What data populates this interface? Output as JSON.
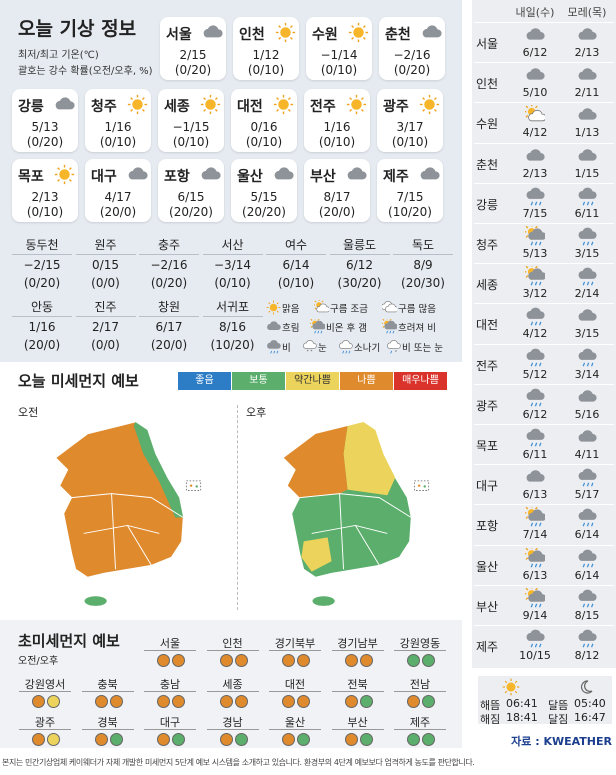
{
  "header": {
    "title": "오늘 기상 정보",
    "note1": "최저/최고 기온(℃)",
    "note2": "괄호는 강수 확률(오전/오후, %)"
  },
  "cities": [
    {
      "name": "서울",
      "temp": "2/15",
      "rain": "(0/20)",
      "icon": "cloud"
    },
    {
      "name": "인천",
      "temp": "1/12",
      "rain": "(0/10)",
      "icon": "sun"
    },
    {
      "name": "수원",
      "temp": "−1/14",
      "rain": "(0/10)",
      "icon": "sun"
    },
    {
      "name": "춘천",
      "temp": "−2/16",
      "rain": "(0/20)",
      "icon": "cloud"
    },
    {
      "name": "강릉",
      "temp": "5/13",
      "rain": "(0/20)",
      "icon": "cloud"
    },
    {
      "name": "청주",
      "temp": "1/16",
      "rain": "(0/10)",
      "icon": "sun"
    },
    {
      "name": "세종",
      "temp": "−1/15",
      "rain": "(0/10)",
      "icon": "sun"
    },
    {
      "name": "대전",
      "temp": "0/16",
      "rain": "(0/10)",
      "icon": "sun"
    },
    {
      "name": "전주",
      "temp": "1/16",
      "rain": "(0/10)",
      "icon": "sun"
    },
    {
      "name": "광주",
      "temp": "3/17",
      "rain": "(0/10)",
      "icon": "sun"
    },
    {
      "name": "목포",
      "temp": "2/13",
      "rain": "(0/10)",
      "icon": "sun"
    },
    {
      "name": "대구",
      "temp": "4/17",
      "rain": "(20/0)",
      "icon": "cloud"
    },
    {
      "name": "포항",
      "temp": "6/15",
      "rain": "(20/20)",
      "icon": "cloud"
    },
    {
      "name": "울산",
      "temp": "5/15",
      "rain": "(20/20)",
      "icon": "cloud"
    },
    {
      "name": "부산",
      "temp": "8/17",
      "rain": "(20/0)",
      "icon": "cloud"
    },
    {
      "name": "제주",
      "temp": "7/15",
      "rain": "(10/20)",
      "icon": "cloud"
    }
  ],
  "small_cities": [
    {
      "name": "동두천",
      "temp": "−2/15",
      "rain": "(0/20)"
    },
    {
      "name": "원주",
      "temp": "0/15",
      "rain": "(0/0)"
    },
    {
      "name": "충주",
      "temp": "−2/16",
      "rain": "(0/20)"
    },
    {
      "name": "서산",
      "temp": "−3/14",
      "rain": "(0/10)"
    },
    {
      "name": "여수",
      "temp": "6/14",
      "rain": "(0/10)"
    },
    {
      "name": "울릉도",
      "temp": "6/12",
      "rain": "(30/20)"
    },
    {
      "name": "독도",
      "temp": "8/9",
      "rain": "(20/30)"
    },
    {
      "name": "안동",
      "temp": "1/16",
      "rain": "(20/0)"
    },
    {
      "name": "진주",
      "temp": "2/17",
      "rain": "(0/0)"
    },
    {
      "name": "창원",
      "temp": "6/17",
      "rain": "(20/0)"
    },
    {
      "name": "서귀포",
      "temp": "8/16",
      "rain": "(10/20)"
    }
  ],
  "legend": [
    {
      "label": "맑음",
      "icon": "sun"
    },
    {
      "label": "구름 조금",
      "icon": "suncloud"
    },
    {
      "label": "구름 많음",
      "icon": "cloudmany"
    },
    {
      "label": "흐림",
      "icon": "cloud"
    },
    {
      "label": "비온 후 갬",
      "icon": "sunrain"
    },
    {
      "label": "흐려져 비",
      "icon": "sunrain"
    },
    {
      "label": "비",
      "icon": "rain"
    },
    {
      "label": "눈",
      "icon": "snow"
    },
    {
      "label": "소나기",
      "icon": "shower"
    },
    {
      "label": "비 또는 눈",
      "icon": "rainsnow"
    }
  ],
  "dust": {
    "title": "오늘 미세먼지 예보",
    "am_label": "오전",
    "pm_label": "오후",
    "levels": [
      {
        "label": "좋음",
        "color": "#2d7cc6"
      },
      {
        "label": "보통",
        "color": "#5bae6b"
      },
      {
        "label": "약간나쁨",
        "color": "#ecd45c"
      },
      {
        "label": "나쁨",
        "color": "#df8a2c"
      },
      {
        "label": "매우나쁨",
        "color": "#d9332b"
      }
    ]
  },
  "ultrafine": {
    "title": "초미세먼지 예보",
    "subtitle": "오전/오후",
    "regions": [
      {
        "name": "서울",
        "am": "나쁨",
        "pm": "나쁨"
      },
      {
        "name": "인천",
        "am": "나쁨",
        "pm": "나쁨"
      },
      {
        "name": "경기북부",
        "am": "나쁨",
        "pm": "나쁨"
      },
      {
        "name": "경기남부",
        "am": "나쁨",
        "pm": "나쁨"
      },
      {
        "name": "강원영동",
        "am": "보통",
        "pm": "보통"
      },
      {
        "name": "강원영서",
        "am": "나쁨",
        "pm": "약간나쁨"
      },
      {
        "name": "충북",
        "am": "나쁨",
        "pm": "나쁨"
      },
      {
        "name": "충남",
        "am": "나쁨",
        "pm": "나쁨"
      },
      {
        "name": "세종",
        "am": "나쁨",
        "pm": "나쁨"
      },
      {
        "name": "대전",
        "am": "나쁨",
        "pm": "나쁨"
      },
      {
        "name": "전북",
        "am": "나쁨",
        "pm": "보통"
      },
      {
        "name": "전남",
        "am": "나쁨",
        "pm": "보통"
      },
      {
        "name": "광주",
        "am": "나쁨",
        "pm": "약간나쁨"
      },
      {
        "name": "경북",
        "am": "나쁨",
        "pm": "보통"
      },
      {
        "name": "대구",
        "am": "나쁨",
        "pm": "보통"
      },
      {
        "name": "경남",
        "am": "나쁨",
        "pm": "보통"
      },
      {
        "name": "울산",
        "am": "나쁨",
        "pm": "보통"
      },
      {
        "name": "부산",
        "am": "나쁨",
        "pm": "보통"
      },
      {
        "name": "제주",
        "am": "보통",
        "pm": "보통"
      }
    ]
  },
  "forecast": {
    "headers": [
      "내일(수)",
      "모레(목)"
    ],
    "rows": [
      {
        "city": "서울",
        "d1": "6/12",
        "d1_icon": "cloud",
        "d2": "2/13",
        "d2_icon": "cloud"
      },
      {
        "city": "인천",
        "d1": "5/10",
        "d1_icon": "cloud",
        "d2": "2/11",
        "d2_icon": "cloud"
      },
      {
        "city": "수원",
        "d1": "4/12",
        "d1_icon": "suncloud",
        "d2": "1/13",
        "d2_icon": "cloud"
      },
      {
        "city": "춘천",
        "d1": "2/13",
        "d1_icon": "cloud",
        "d2": "1/15",
        "d2_icon": "cloud"
      },
      {
        "city": "강릉",
        "d1": "7/15",
        "d1_icon": "rain",
        "d2": "6/11",
        "d2_icon": "rain"
      },
      {
        "city": "청주",
        "d1": "5/13",
        "d1_icon": "sunrain",
        "d2": "3/15",
        "d2_icon": "rain"
      },
      {
        "city": "세종",
        "d1": "3/12",
        "d1_icon": "sunrain",
        "d2": "2/14",
        "d2_icon": "rain"
      },
      {
        "city": "대전",
        "d1": "4/12",
        "d1_icon": "rain",
        "d2": "3/15",
        "d2_icon": "cloud"
      },
      {
        "city": "전주",
        "d1": "5/12",
        "d1_icon": "rain",
        "d2": "3/14",
        "d2_icon": "rain"
      },
      {
        "city": "광주",
        "d1": "6/12",
        "d1_icon": "rain",
        "d2": "5/16",
        "d2_icon": "cloud"
      },
      {
        "city": "목포",
        "d1": "6/11",
        "d1_icon": "rain",
        "d2": "4/11",
        "d2_icon": "cloud"
      },
      {
        "city": "대구",
        "d1": "6/13",
        "d1_icon": "cloud",
        "d2": "5/17",
        "d2_icon": "rain"
      },
      {
        "city": "포항",
        "d1": "7/14",
        "d1_icon": "sunrain",
        "d2": "6/14",
        "d2_icon": "rain"
      },
      {
        "city": "울산",
        "d1": "6/13",
        "d1_icon": "sunrain",
        "d2": "6/14",
        "d2_icon": "rain"
      },
      {
        "city": "부산",
        "d1": "9/14",
        "d1_icon": "sunrain",
        "d2": "8/15",
        "d2_icon": "rain"
      },
      {
        "city": "제주",
        "d1": "10/15",
        "d1_icon": "rain",
        "d2": "8/12",
        "d2_icon": "rain"
      }
    ]
  },
  "astro": {
    "sunrise_label": "해뜸",
    "sunrise": "06:41",
    "sunset_label": "해짐",
    "sunset": "18:41",
    "moonrise_label": "달뜸",
    "moonrise": "05:40",
    "moonset_label": "달짐",
    "moonset": "16:47"
  },
  "source": "자료 : KWEATHER",
  "footer": "본지는 민간기상업체 케이웨더가 자체 개발한 미세먼지 5단계 예보 시스템을 소개하고 있습니다. 환경부의 4단계 예보보다 엄격하게 농도를 판단합니다."
}
